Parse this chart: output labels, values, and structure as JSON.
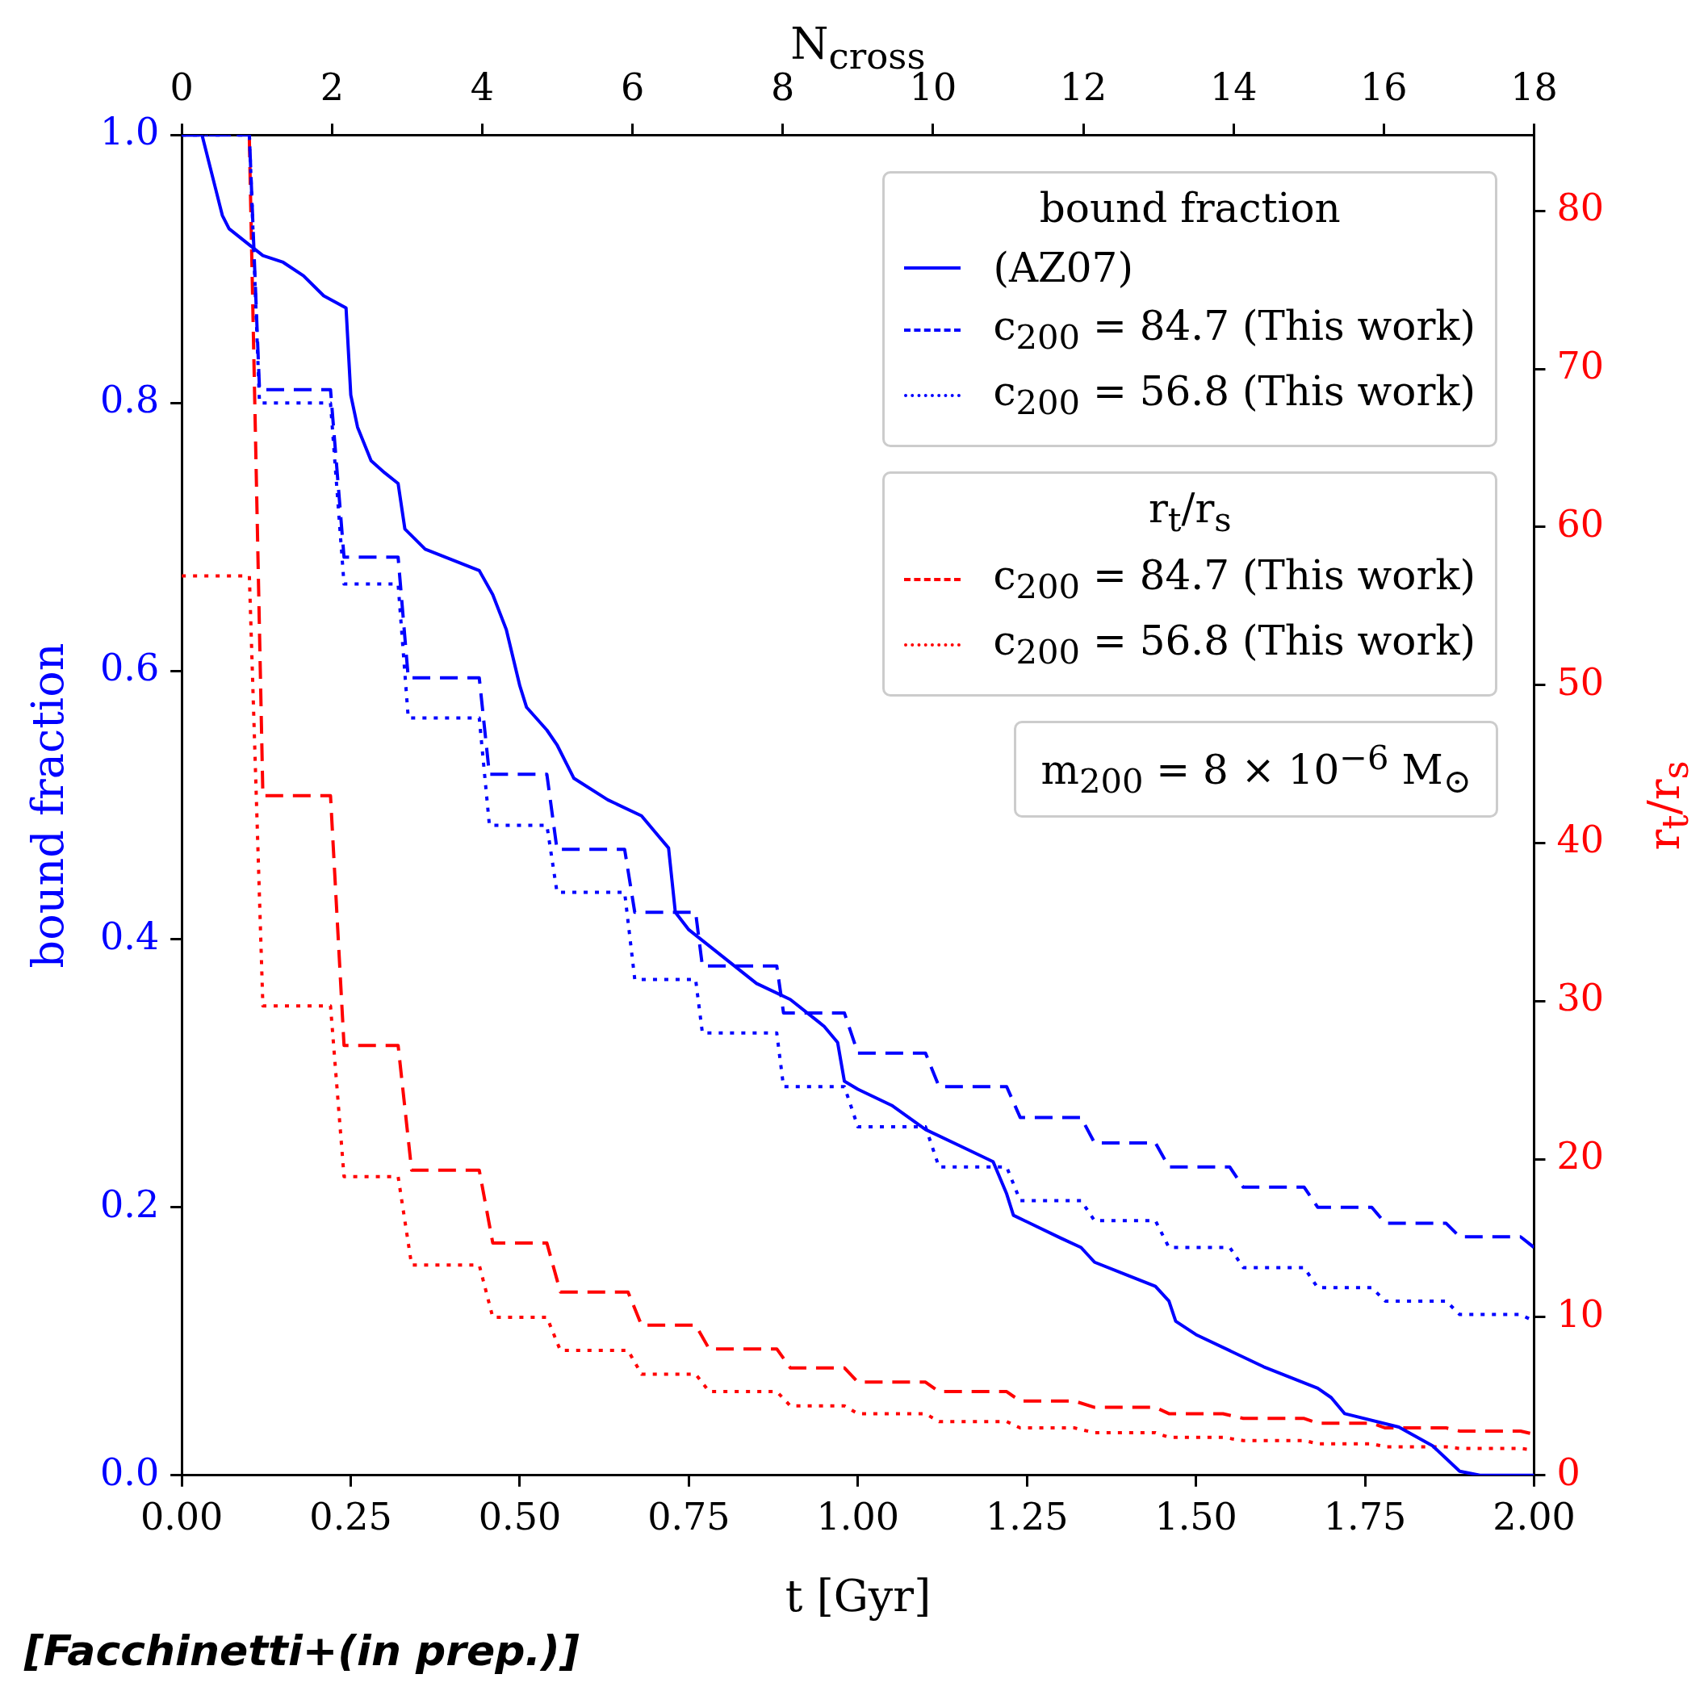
{
  "chart_data": {
    "type": "line",
    "xlabel": "t [Gyr]",
    "ylabel": "bound fraction",
    "y2label": "r$_{t}$/r$_{s}$",
    "x2label": "N$_{cross}$",
    "legend_title": "bound fraction",
    "legend": "top right",
    "grid": false,
    "marker": "none",
    "xlim": [
      0,
      2
    ],
    "xticks": [
      {
        "value": 0,
        "label": "0.00"
      },
      {
        "value": 0.25,
        "label": "0.25"
      },
      {
        "value": 0.5,
        "label": "0.50"
      },
      {
        "value": 0.75,
        "label": "0.75"
      },
      {
        "value": 1,
        "label": "1.00"
      },
      {
        "value": 1.25,
        "label": "1.25"
      },
      {
        "value": 1.5,
        "label": "1.50"
      },
      {
        "value": 1.75,
        "label": "1.75"
      },
      {
        "value": 2,
        "label": "2.00"
      }
    ],
    "x2lim": [
      0,
      18
    ],
    "x2ticks": [
      0,
      2,
      4,
      6,
      8,
      10,
      12,
      14,
      16,
      18
    ],
    "ylim": [
      0,
      1
    ],
    "yticks": [
      {
        "value": 0,
        "label": "0.0"
      },
      0.2,
      0.4,
      0.6,
      0.8,
      {
        "value": 1,
        "label": "1.0"
      }
    ],
    "y2lim": [
      0,
      84.8
    ],
    "y2ticks": [
      0,
      10,
      20,
      30,
      40,
      50,
      60,
      70,
      80
    ],
    "annotations": [
      "m$_{200}$ = 8 × 10$^{−6}$ M$_{⊙}$",
      "[Facchinetti+(in prep.)]"
    ],
    "series": [
      {
        "name": "(AZ07)",
        "color": "#0000ff",
        "line_style": "solid",
        "x": [
          0,
          0.03,
          0.04,
          0.05,
          0.06,
          0.07,
          0.1,
          0.12,
          0.15,
          0.18,
          0.21,
          0.243,
          0.25,
          0.26,
          0.28,
          0.3,
          0.32,
          0.33,
          0.36,
          0.4,
          0.44,
          0.46,
          0.48,
          0.5,
          0.51,
          0.54,
          0.555,
          0.58,
          0.63,
          0.68,
          0.7,
          0.72,
          0.73,
          0.75,
          0.8,
          0.85,
          0.9,
          0.95,
          0.97,
          0.98,
          1.0,
          1.05,
          1.1,
          1.15,
          1.2,
          1.22,
          1.23,
          1.3,
          1.33,
          1.35,
          1.4,
          1.44,
          1.46,
          1.47,
          1.5,
          1.6,
          1.68,
          1.7,
          1.72,
          1.8,
          1.85,
          1.89,
          1.92,
          2.0
        ],
        "values": [
          1.0,
          1.0,
          0.98,
          0.96,
          0.94,
          0.93,
          0.918,
          0.91,
          0.905,
          0.895,
          0.88,
          0.871,
          0.806,
          0.782,
          0.757,
          0.748,
          0.74,
          0.706,
          0.691,
          0.683,
          0.675,
          0.657,
          0.631,
          0.589,
          0.573,
          0.556,
          0.545,
          0.52,
          0.504,
          0.492,
          0.48,
          0.468,
          0.42,
          0.407,
          0.387,
          0.367,
          0.355,
          0.335,
          0.323,
          0.294,
          0.288,
          0.276,
          0.258,
          0.246,
          0.234,
          0.21,
          0.194,
          0.177,
          0.17,
          0.159,
          0.149,
          0.141,
          0.13,
          0.115,
          0.105,
          0.081,
          0.065,
          0.058,
          0.046,
          0.036,
          0.022,
          0.003,
          0,
          0
        ]
      },
      {
        "name": "c$_{200}$ = 84.7 (This work)",
        "color": "#0000ff",
        "line_style": "dashed",
        "x": [
          0,
          0.1,
          0.115,
          0.22,
          0.24,
          0.32,
          0.335,
          0.44,
          0.455,
          0.54,
          0.555,
          0.655,
          0.67,
          0.76,
          0.77,
          0.88,
          0.89,
          0.98,
          1.0,
          1.1,
          1.12,
          1.22,
          1.24,
          1.33,
          1.35,
          1.44,
          1.46,
          1.55,
          1.57,
          1.66,
          1.68,
          1.76,
          1.78,
          1.87,
          1.89,
          1.98,
          2.0
        ],
        "values": [
          1.0,
          1.0,
          0.81,
          0.81,
          0.685,
          0.685,
          0.595,
          0.595,
          0.523,
          0.523,
          0.467,
          0.467,
          0.42,
          0.42,
          0.38,
          0.38,
          0.345,
          0.345,
          0.315,
          0.315,
          0.29,
          0.29,
          0.267,
          0.267,
          0.248,
          0.248,
          0.23,
          0.23,
          0.215,
          0.215,
          0.2,
          0.2,
          0.188,
          0.188,
          0.178,
          0.178,
          0.17
        ]
      },
      {
        "name": "c$_{200}$ = 56.8 (This work)",
        "color": "#0000ff",
        "line_style": "dotted",
        "x": [
          0,
          0.1,
          0.115,
          0.22,
          0.24,
          0.32,
          0.335,
          0.44,
          0.455,
          0.54,
          0.555,
          0.655,
          0.67,
          0.76,
          0.77,
          0.88,
          0.89,
          0.98,
          1.0,
          1.1,
          1.12,
          1.22,
          1.24,
          1.33,
          1.35,
          1.44,
          1.46,
          1.55,
          1.57,
          1.66,
          1.68,
          1.76,
          1.78,
          1.87,
          1.89,
          1.98,
          2.0
        ],
        "values": [
          1.0,
          1.0,
          0.8,
          0.8,
          0.665,
          0.665,
          0.565,
          0.565,
          0.485,
          0.485,
          0.435,
          0.435,
          0.37,
          0.37,
          0.33,
          0.33,
          0.29,
          0.29,
          0.26,
          0.26,
          0.23,
          0.23,
          0.205,
          0.205,
          0.19,
          0.19,
          0.17,
          0.17,
          0.155,
          0.155,
          0.14,
          0.14,
          0.13,
          0.13,
          0.12,
          0.12,
          0.115
        ]
      },
      {
        "name": "c$_{200}$ = 84.7 (This work)",
        "color": "#ff0000",
        "line_style": "dashed",
        "axis": "y2",
        "x": [
          0.1,
          0.12,
          0.22,
          0.24,
          0.32,
          0.34,
          0.44,
          0.46,
          0.54,
          0.56,
          0.66,
          0.68,
          0.76,
          0.78,
          0.88,
          0.9,
          0.98,
          1.0,
          1.1,
          1.12,
          1.22,
          1.24,
          1.32,
          1.35,
          1.44,
          1.46,
          1.54,
          1.57,
          1.66,
          1.68,
          1.76,
          1.78,
          1.87,
          1.89,
          1.98,
          2.0
        ],
        "values": [
          84.5,
          43,
          43,
          27.2,
          27.2,
          19.3,
          19.3,
          14.7,
          14.7,
          11.6,
          11.6,
          9.5,
          9.5,
          8.0,
          8.0,
          6.8,
          6.8,
          5.9,
          5.9,
          5.3,
          5.3,
          4.7,
          4.7,
          4.3,
          4.3,
          3.9,
          3.9,
          3.6,
          3.6,
          3.3,
          3.3,
          3.0,
          3.0,
          2.8,
          2.8,
          2.6
        ]
      },
      {
        "name": "c$_{200}$ = 56.8 (This work)",
        "color": "#ff0000",
        "line_style": "dotted",
        "axis": "y2",
        "x": [
          0,
          0.1,
          0.12,
          0.22,
          0.24,
          0.32,
          0.34,
          0.44,
          0.46,
          0.54,
          0.56,
          0.66,
          0.68,
          0.76,
          0.78,
          0.88,
          0.9,
          0.98,
          1.0,
          1.1,
          1.12,
          1.22,
          1.24,
          1.32,
          1.35,
          1.44,
          1.46,
          1.54,
          1.57,
          1.66,
          1.68,
          1.76,
          1.78,
          1.87,
          1.89,
          1.98,
          2.0
        ],
        "values": [
          56.9,
          56.9,
          29.7,
          29.7,
          18.9,
          18.9,
          13.3,
          13.3,
          10.0,
          10.0,
          7.9,
          7.9,
          6.4,
          6.4,
          5.3,
          5.3,
          4.4,
          4.4,
          3.9,
          3.9,
          3.4,
          3.4,
          3.0,
          3.0,
          2.7,
          2.7,
          2.4,
          2.4,
          2.2,
          2.2,
          2.0,
          2.0,
          1.8,
          1.8,
          1.7,
          1.7,
          1.6
        ]
      }
    ]
  }
}
